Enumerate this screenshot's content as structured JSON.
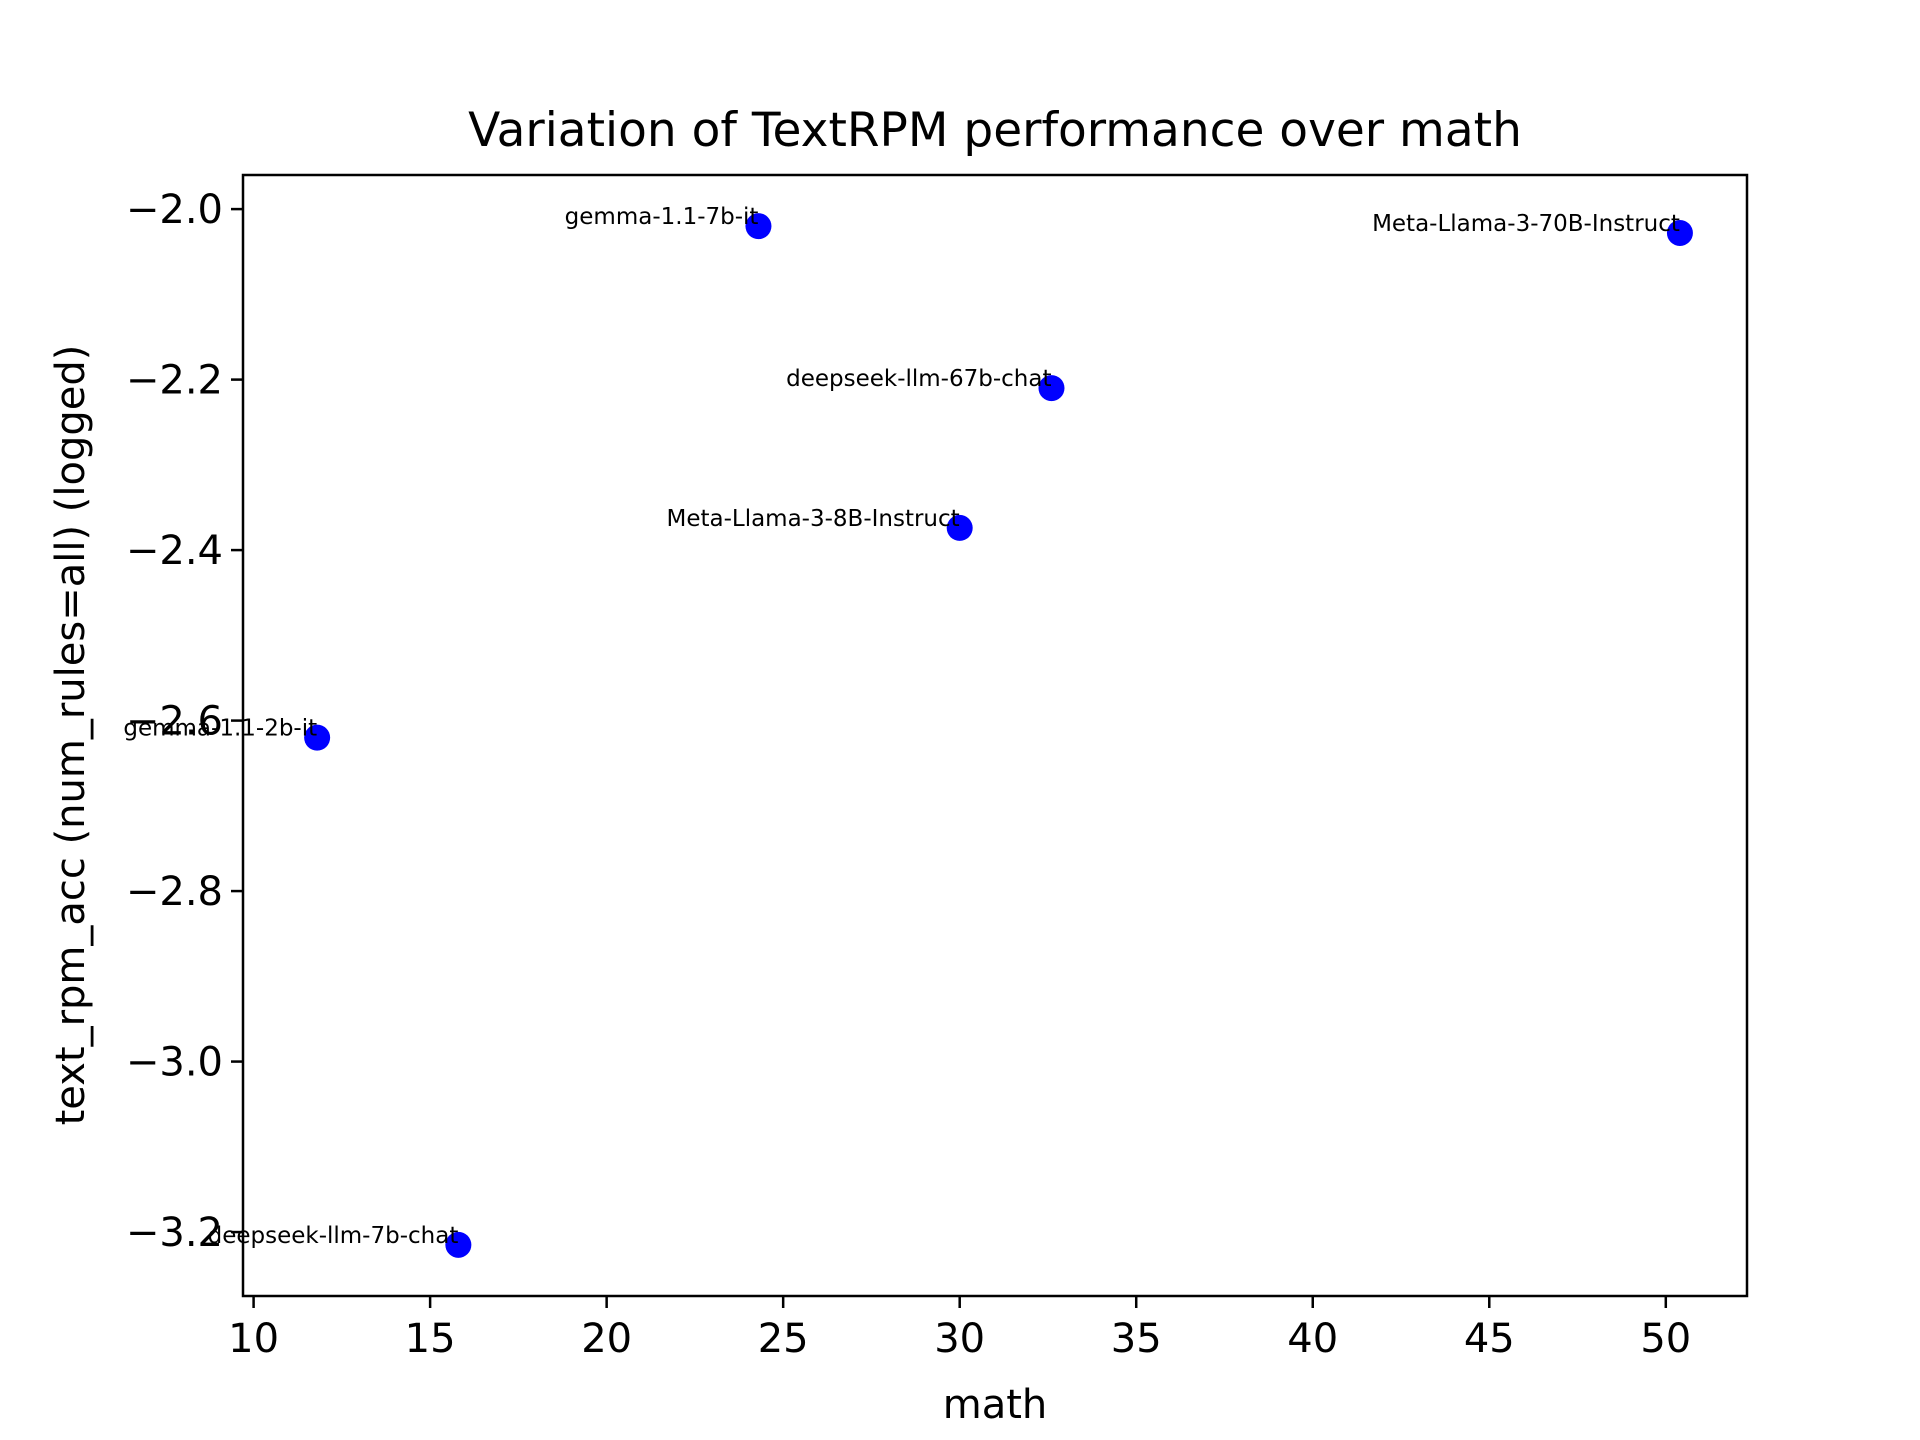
{
  "chart_data": {
    "type": "scatter",
    "title": "Variation of TextRPM performance over math",
    "xlabel": "math",
    "ylabel": "text_rpm_acc (num_rules=all) (logged)",
    "xlim": [
      9.7,
      52.3
    ],
    "ylim": [
      -3.275,
      -1.96
    ],
    "xticks": [
      10,
      15,
      20,
      25,
      30,
      35,
      40,
      45,
      50
    ],
    "yticks": [
      -2.0,
      -2.2,
      -2.4,
      -2.6,
      -2.8,
      -3.0,
      -3.2
    ],
    "xtick_labels": [
      "10",
      "15",
      "20",
      "25",
      "30",
      "35",
      "40",
      "45",
      "50"
    ],
    "ytick_labels": [
      "−2.0",
      "−2.2",
      "−2.4",
      "−2.6",
      "−2.8",
      "−3.0",
      "−3.2"
    ],
    "grid": false,
    "marker_color": "#0000ff",
    "points": [
      {
        "label": "gemma-1.1-7b-it",
        "x": 24.3,
        "y": -2.02
      },
      {
        "label": "Meta-Llama-3-70B-Instruct",
        "x": 50.4,
        "y": -2.028
      },
      {
        "label": "deepseek-llm-67b-chat",
        "x": 32.6,
        "y": -2.21
      },
      {
        "label": "Meta-Llama-3-8B-Instruct",
        "x": 30.0,
        "y": -2.374
      },
      {
        "label": "gemma-1.1-2b-it",
        "x": 11.8,
        "y": -2.62
      },
      {
        "label": "deepseek-llm-7b-chat",
        "x": 15.8,
        "y": -3.215
      }
    ]
  }
}
